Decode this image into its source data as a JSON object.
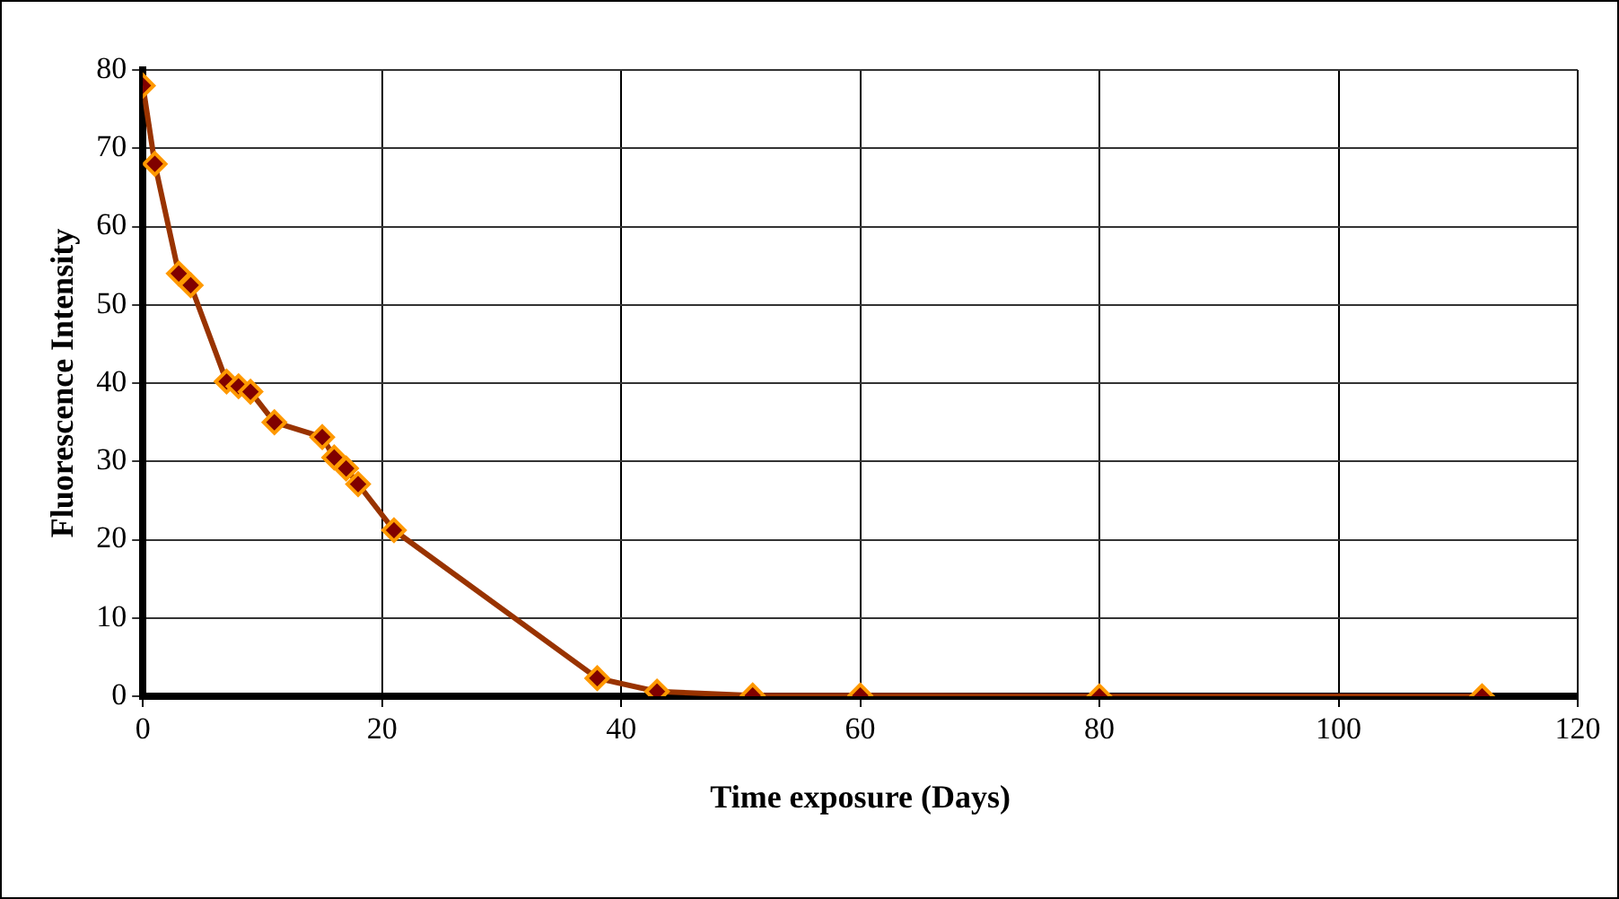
{
  "chart_data": {
    "type": "line",
    "xlabel": "Time exposure (Days)",
    "ylabel": "Fluorescence Intensity",
    "x": [
      0,
      1,
      3,
      4,
      7,
      8,
      9,
      11,
      15,
      16,
      17,
      18,
      21,
      38,
      43,
      51,
      60,
      80,
      112
    ],
    "series": [
      {
        "color": "#993300",
        "values": [
          78,
          68,
          54,
          52.5,
          40.2,
          39.6,
          38.9,
          35,
          33.1,
          30.5,
          29.1,
          27.1,
          21.2,
          2.3,
          0.6,
          0.1,
          0.1,
          0,
          0
        ]
      }
    ],
    "xlim": [
      0,
      120
    ],
    "xticks": [
      0,
      20,
      40,
      60,
      80,
      100,
      120
    ],
    "ylim": [
      0,
      80
    ],
    "yticks": [
      0,
      10,
      20,
      30,
      40,
      50,
      60,
      70,
      80
    ],
    "grid": true,
    "legend": false,
    "marker": "diamond",
    "line_style": "solid"
  }
}
